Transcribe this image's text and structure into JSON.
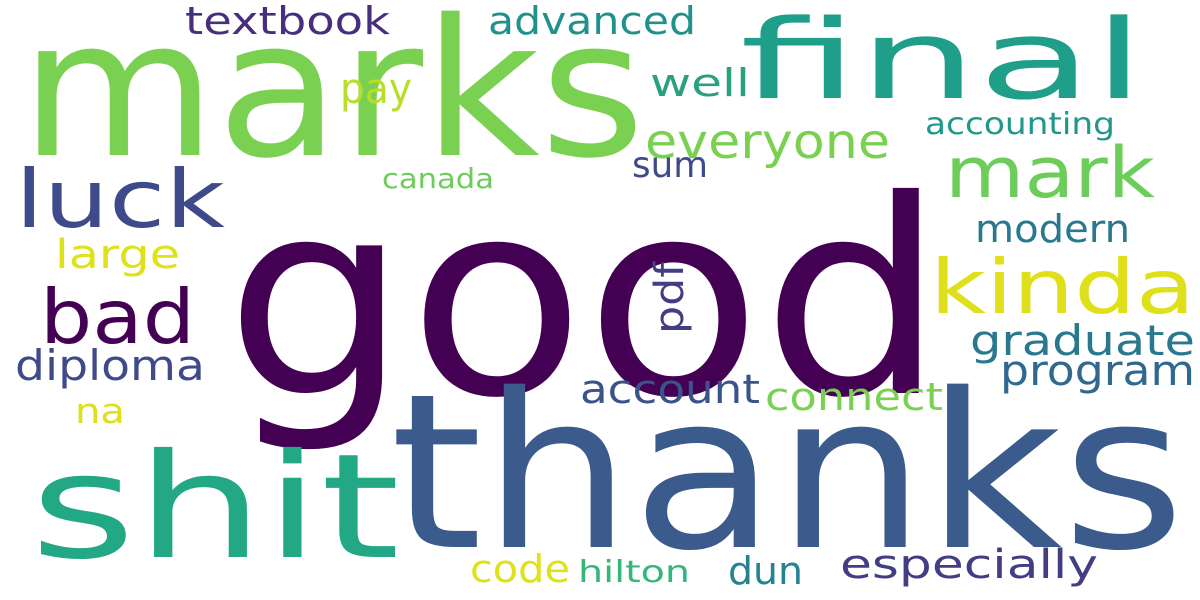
{
  "words": [
    {
      "text": "good",
      "color": "#440154",
      "orientation": "horizontal"
    },
    {
      "text": "thanks",
      "color": "#3b5b8c",
      "orientation": "horizontal"
    },
    {
      "text": "marks",
      "color": "#7ad151",
      "orientation": "horizontal"
    },
    {
      "text": "final",
      "color": "#1f9e89",
      "orientation": "horizontal"
    },
    {
      "text": "shit",
      "color": "#22a884",
      "orientation": "horizontal"
    },
    {
      "text": "luck",
      "color": "#3e4a89",
      "orientation": "horizontal"
    },
    {
      "text": "bad",
      "color": "#440154",
      "orientation": "horizontal"
    },
    {
      "text": "kinda",
      "color": "#e0e01a",
      "orientation": "horizontal"
    },
    {
      "text": "mark",
      "color": "#6ccd5a",
      "orientation": "horizontal"
    },
    {
      "text": "everyone",
      "color": "#7ad151",
      "orientation": "horizontal"
    },
    {
      "text": "textbook",
      "color": "#472f7d",
      "orientation": "horizontal"
    },
    {
      "text": "advanced",
      "color": "#21918c",
      "orientation": "horizontal"
    },
    {
      "text": "well",
      "color": "#2ba07f",
      "orientation": "horizontal"
    },
    {
      "text": "pay",
      "color": "#b8de29",
      "orientation": "horizontal"
    },
    {
      "text": "accounting",
      "color": "#1f988b",
      "orientation": "horizontal"
    },
    {
      "text": "sum",
      "color": "#3e4a89",
      "orientation": "horizontal"
    },
    {
      "text": "canada",
      "color": "#6ccd5a",
      "orientation": "horizontal"
    },
    {
      "text": "modern",
      "color": "#2a788e",
      "orientation": "horizontal"
    },
    {
      "text": "large",
      "color": "#dde318",
      "orientation": "horizontal"
    },
    {
      "text": "pdf",
      "color": "#433d84",
      "orientation": "vertical"
    },
    {
      "text": "graduate",
      "color": "#2a788e",
      "orientation": "horizontal"
    },
    {
      "text": "program",
      "color": "#31688e",
      "orientation": "horizontal"
    },
    {
      "text": "diploma",
      "color": "#3e4a89",
      "orientation": "horizontal"
    },
    {
      "text": "account",
      "color": "#3b528b",
      "orientation": "horizontal"
    },
    {
      "text": "connect",
      "color": "#7ad151",
      "orientation": "horizontal"
    },
    {
      "text": "na",
      "color": "#e0e01a",
      "orientation": "horizontal"
    },
    {
      "text": "code",
      "color": "#dde318",
      "orientation": "horizontal"
    },
    {
      "text": "hilton",
      "color": "#35b779",
      "orientation": "horizontal"
    },
    {
      "text": "dun",
      "color": "#26828e",
      "orientation": "horizontal"
    },
    {
      "text": "especially",
      "color": "#433d84",
      "orientation": "horizontal"
    }
  ]
}
